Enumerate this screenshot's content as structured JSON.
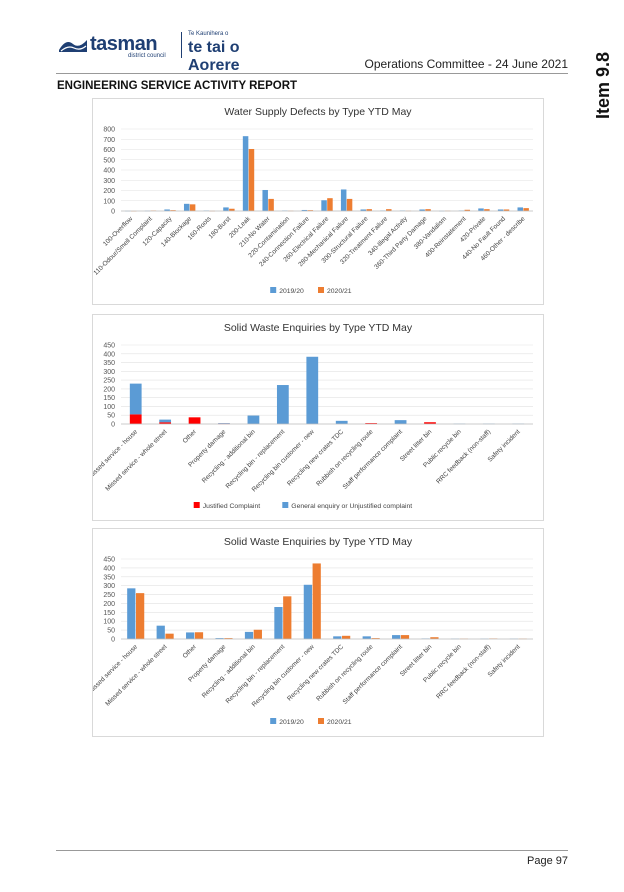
{
  "header": {
    "brand": "tasman",
    "district": "district council",
    "maori_small": "Te Kaunihera o",
    "maori": "te tai o Aorere",
    "meeting": "Operations Committee - 24 June 2021",
    "item": "Item 9.8"
  },
  "report_title": "ENGINEERING SERVICE ACTIVITY REPORT",
  "footer": {
    "page": "Page 97"
  },
  "colors": {
    "blue": "#5b9bd5",
    "orange": "#ed7d31",
    "red": "#ff0000"
  },
  "chart_data": [
    {
      "type": "bar",
      "title": "Water Supply Defects by Type YTD May",
      "ylim": [
        0,
        800
      ],
      "yticks": [
        0,
        100,
        200,
        300,
        400,
        500,
        600,
        700,
        800
      ],
      "categories": [
        "100-Overflow",
        "110-Odour/Smell Complaint",
        "120-Capacity",
        "140-Blockage",
        "160-Roots",
        "180-Burst",
        "200-Leak",
        "210-No Water",
        "220-Contamination",
        "240-Connection Failure",
        "260-Electrical Failure",
        "280-Mechanical Failure",
        "300-Structural Failure",
        "320-Treatment Failure",
        "340-Illegal Activity",
        "360-Third Party Damage",
        "380-Vandalism",
        "400-Reinstatement",
        "420-Private",
        "440-No Fault Found",
        "460-Other - describe"
      ],
      "series": [
        {
          "name": "2019/20",
          "values": [
            2,
            3,
            15,
            70,
            5,
            35,
            730,
            205,
            5,
            10,
            105,
            210,
            15,
            5,
            5,
            15,
            2,
            5,
            25,
            15,
            35
          ]
        },
        {
          "name": "2020/21",
          "values": [
            1,
            5,
            8,
            65,
            2,
            22,
            605,
            118,
            3,
            8,
            125,
            118,
            18,
            18,
            3,
            18,
            3,
            12,
            18,
            15,
            28
          ]
        }
      ]
    },
    {
      "type": "bar",
      "title": "Solid Waste Enquiries by Type YTD May",
      "ylim": [
        0,
        450
      ],
      "yticks": [
        0,
        50,
        100,
        150,
        200,
        250,
        300,
        350,
        400,
        450
      ],
      "categories": [
        "Missed service - house",
        "Missed service - whole street",
        "Other",
        "Property damage",
        "Recycling - additional bin",
        "Recycling bin - replacement",
        "Recycling bin customer - new",
        "Recycling new crates TDC",
        "Rubbish on recycling route",
        "Staff performance complaint",
        "Street litter bin",
        "Public recycle bin",
        "RRC feedback (non-staff)",
        "Safety incident"
      ],
      "series": [
        {
          "name": "Justified Complaint",
          "values": [
            55,
            10,
            38,
            2,
            0,
            0,
            0,
            0,
            5,
            0,
            10,
            0,
            0,
            0
          ]
        },
        {
          "name": "General enquiry or Unjustified complaint",
          "values": [
            175,
            15,
            0,
            3,
            48,
            222,
            383,
            18,
            0,
            22,
            0,
            2,
            2,
            2
          ]
        }
      ]
    },
    {
      "type": "bar",
      "title": "Solid Waste Enquiries by Type YTD May",
      "ylim": [
        0,
        450
      ],
      "yticks": [
        0,
        50,
        100,
        150,
        200,
        250,
        300,
        350,
        400,
        450
      ],
      "categories": [
        "Missed service - house",
        "Missed service - whole street",
        "Other",
        "Property damage",
        "Recycling - additional bin",
        "Recycling bin - replacement",
        "Recycling bin customer - new",
        "Recycling new crates TDC",
        "Rubbish on recycling route",
        "Staff performance complaint",
        "Street litter bin",
        "Public recycle bin",
        "RRC feedback (non-staff)",
        "Safety incident"
      ],
      "series": [
        {
          "name": "2019/20",
          "values": [
            285,
            75,
            37,
            5,
            40,
            180,
            305,
            15,
            15,
            22,
            3,
            2,
            2,
            2
          ]
        },
        {
          "name": "2020/21",
          "values": [
            258,
            30,
            38,
            5,
            52,
            240,
            425,
            18,
            5,
            22,
            10,
            2,
            3,
            2
          ]
        }
      ]
    }
  ]
}
